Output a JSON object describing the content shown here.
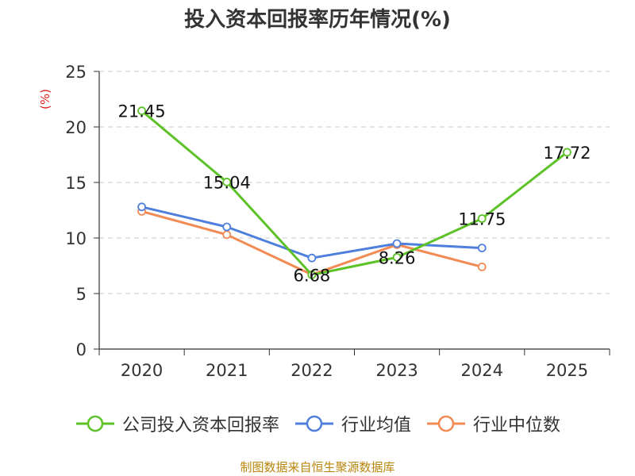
{
  "chart_data": {
    "type": "line",
    "title": "投入资本回报率历年情况(%)",
    "ylabel": "(%)",
    "xlabel": "",
    "categories": [
      "2020",
      "2021",
      "2022",
      "2023",
      "2024",
      "2025"
    ],
    "ylim": [
      0,
      25
    ],
    "yticks": [
      0,
      5,
      10,
      15,
      20,
      25
    ],
    "grid": true,
    "legend_position": "bottom",
    "series": [
      {
        "name": "公司投入资本回报率",
        "color": "#5dc228",
        "values": [
          21.45,
          15.04,
          6.68,
          8.26,
          11.75,
          17.72
        ],
        "labels": [
          "21.45",
          "15.04",
          "6.68",
          "8.26",
          "11.75",
          "17.72"
        ]
      },
      {
        "name": "行业均值",
        "color": "#4e7fdc",
        "values": [
          12.8,
          11.0,
          8.2,
          9.5,
          9.1,
          null
        ]
      },
      {
        "name": "行业中位数",
        "color": "#f28a53",
        "values": [
          12.4,
          10.3,
          6.7,
          9.4,
          7.4,
          null
        ]
      }
    ]
  },
  "source": "制图数据来自恒生聚源数据库"
}
